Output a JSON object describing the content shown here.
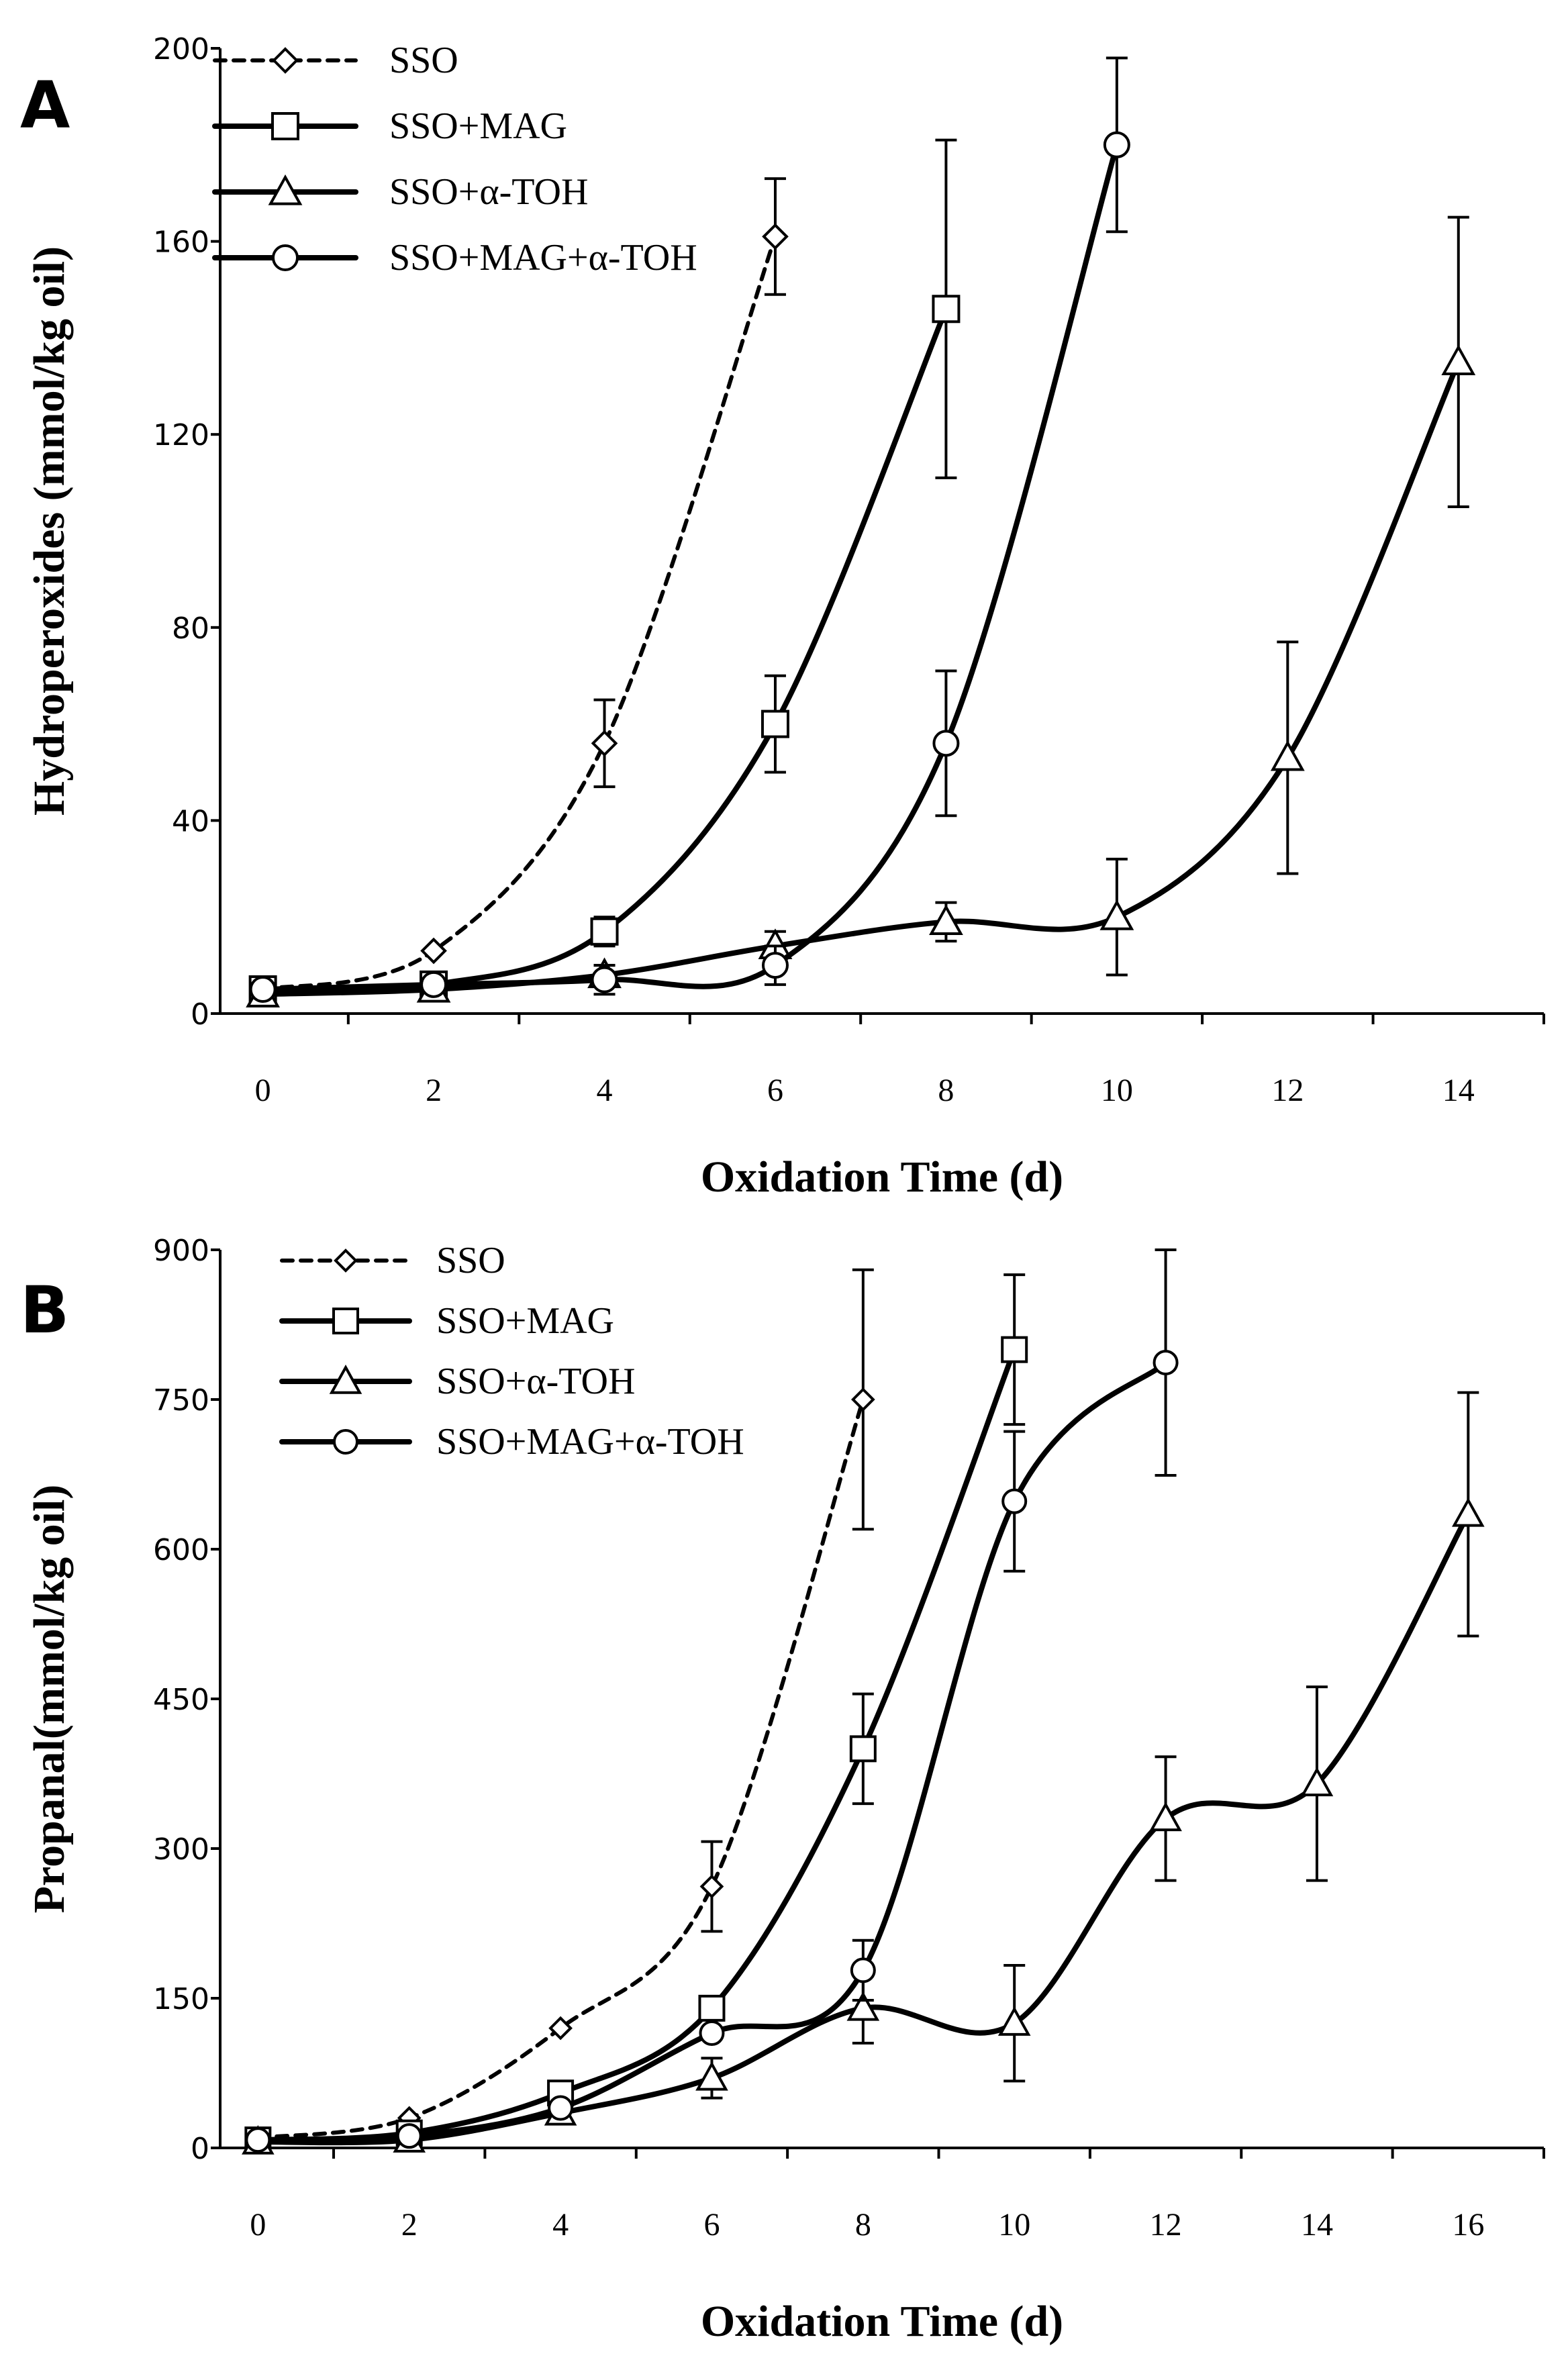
{
  "chart_data": [
    {
      "type": "line",
      "panel": "A",
      "xlabel": "Oxidation Time (d)",
      "ylabel": "Hydroperoxides (mmol/kg oil)",
      "xlim": [
        -0.5,
        15
      ],
      "ylim": [
        0,
        200
      ],
      "xticks": [
        0,
        2,
        4,
        6,
        8,
        10,
        12,
        14
      ],
      "yticks": [
        0,
        40,
        80,
        120,
        160,
        200
      ],
      "legend_position": "top-left",
      "series": [
        {
          "name": "SSO",
          "marker": "diamond",
          "dashed": true,
          "x": [
            0,
            2,
            4,
            6
          ],
          "values": [
            5,
            13,
            56,
            161
          ],
          "errors": [
            0,
            0,
            9,
            12
          ]
        },
        {
          "name": "SSO+MAG",
          "marker": "square",
          "dashed": false,
          "x": [
            0,
            2,
            4,
            6,
            8
          ],
          "values": [
            5,
            6,
            17,
            60,
            146
          ],
          "errors": [
            0,
            0,
            3,
            10,
            35
          ]
        },
        {
          "name": "SSO+α-TOH",
          "marker": "triangle",
          "dashed": false,
          "x": [
            0,
            2,
            4,
            6,
            8,
            10,
            12,
            14
          ],
          "values": [
            4,
            5,
            8,
            14,
            19,
            20,
            53,
            135
          ],
          "errors": [
            0,
            0,
            2,
            3,
            4,
            12,
            24,
            30
          ]
        },
        {
          "name": "SSO+MAG+α-TOH",
          "marker": "circle",
          "dashed": false,
          "x": [
            0,
            2,
            4,
            6,
            8,
            10
          ],
          "values": [
            5,
            6,
            7,
            10,
            56,
            180
          ],
          "errors": [
            0,
            0,
            3,
            4,
            15,
            18
          ]
        }
      ]
    },
    {
      "type": "line",
      "panel": "B",
      "xlabel": "Oxidation Time (d)",
      "ylabel": "Propanal(mmol/kg oil)",
      "xlim": [
        -0.5,
        17
      ],
      "ylim": [
        0,
        900
      ],
      "xticks": [
        0,
        2,
        4,
        6,
        8,
        10,
        12,
        14,
        16
      ],
      "yticks": [
        0,
        150,
        300,
        450,
        600,
        750,
        900
      ],
      "legend_position": "top-left",
      "series": [
        {
          "name": "SSO",
          "marker": "diamond",
          "dashed": true,
          "x": [
            0,
            2,
            4,
            6,
            8
          ],
          "values": [
            10,
            30,
            120,
            262,
            750
          ],
          "errors": [
            0,
            0,
            0,
            45,
            130
          ]
        },
        {
          "name": "SSO+MAG",
          "marker": "square",
          "dashed": false,
          "x": [
            0,
            2,
            4,
            6,
            8,
            10
          ],
          "values": [
            8,
            15,
            55,
            140,
            400,
            800
          ],
          "errors": [
            0,
            0,
            0,
            0,
            55,
            75
          ]
        },
        {
          "name": "SSO+α-TOH",
          "marker": "triangle",
          "dashed": false,
          "x": [
            0,
            2,
            4,
            6,
            8,
            10,
            12,
            14,
            16
          ],
          "values": [
            6,
            8,
            35,
            70,
            140,
            125,
            330,
            365,
            635
          ],
          "errors": [
            0,
            0,
            0,
            20,
            35,
            58,
            62,
            97,
            122
          ]
        },
        {
          "name": "SSO+MAG+α-TOH",
          "marker": "circle",
          "dashed": false,
          "x": [
            0,
            2,
            4,
            6,
            8,
            10,
            12
          ],
          "values": [
            8,
            12,
            40,
            115,
            178,
            648,
            787
          ],
          "errors": [
            0,
            0,
            0,
            0,
            30,
            70,
            113
          ]
        }
      ]
    }
  ]
}
